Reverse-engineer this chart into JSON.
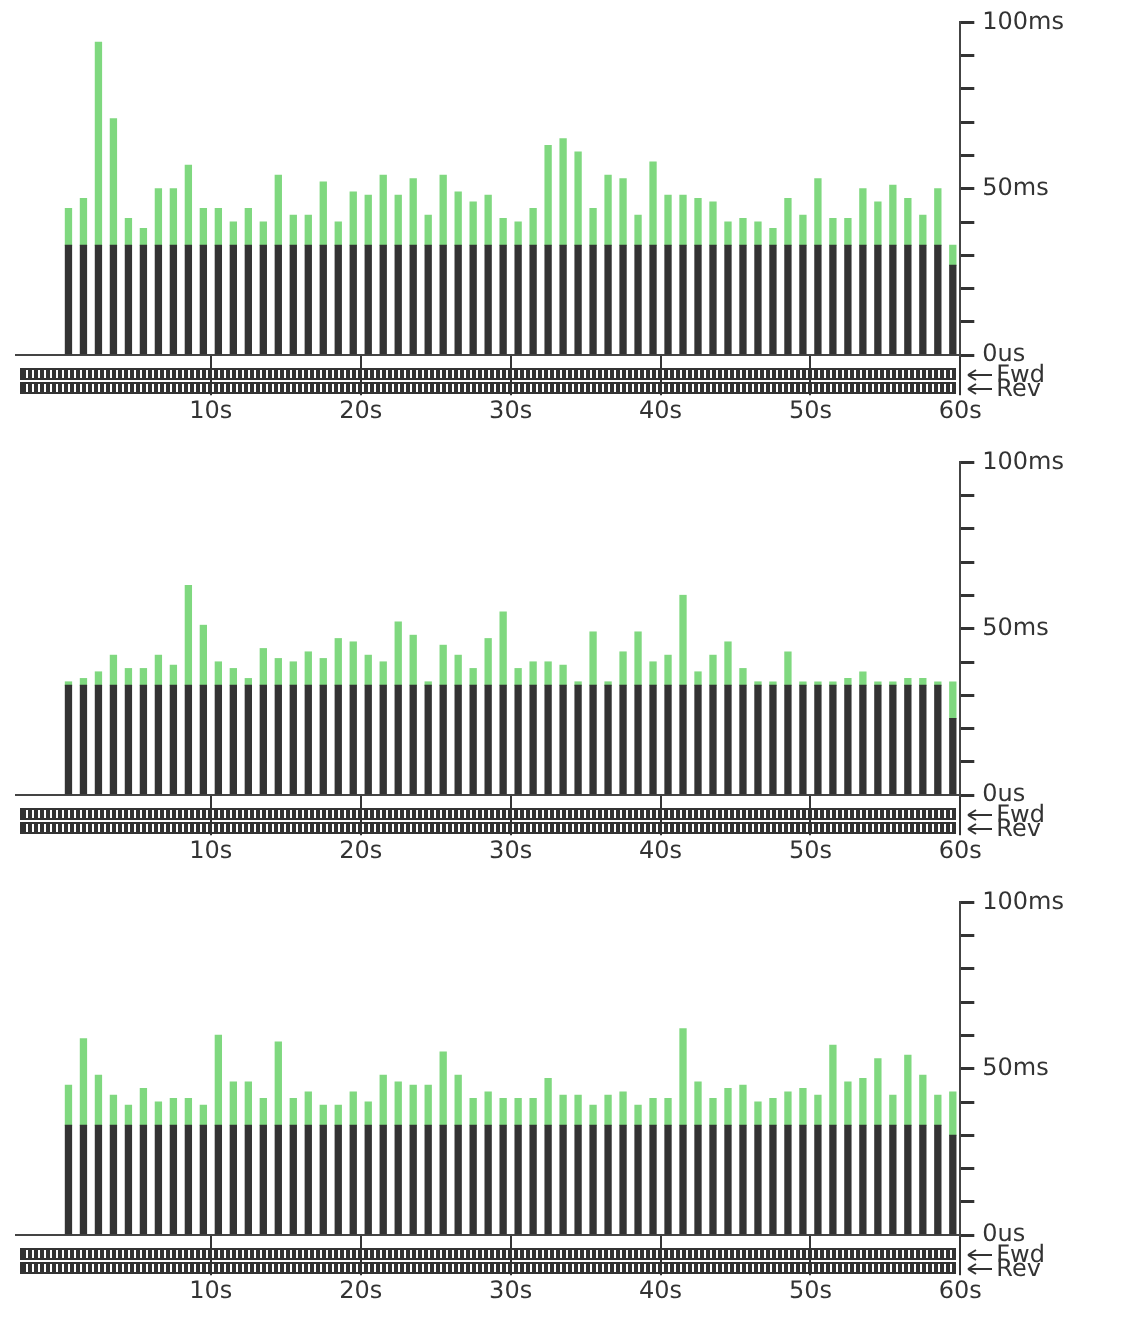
{
  "chart_data": [
    {
      "type": "bar",
      "stacked": true,
      "x": [
        0.5,
        1.5,
        2.5,
        3.5,
        4.5,
        5.5,
        6.5,
        7.5,
        8.5,
        9.5,
        10.5,
        11.5,
        12.5,
        13.5,
        14.5,
        15.5,
        16.5,
        17.5,
        18.5,
        19.5,
        20.5,
        21.5,
        22.5,
        23.5,
        24.5,
        25.5,
        26.5,
        27.5,
        28.5,
        29.5,
        30.5,
        31.5,
        32.5,
        33.5,
        34.5,
        35.5,
        36.5,
        37.5,
        38.5,
        39.5,
        40.5,
        41.5,
        42.5,
        43.5,
        44.5,
        45.5,
        46.5,
        47.5,
        48.5,
        49.5,
        50.5,
        51.5,
        52.5,
        53.5,
        54.5,
        55.5,
        56.5,
        57.5,
        58.5,
        59.5
      ],
      "series": [
        {
          "color": "#333333",
          "values": [
            33,
            33,
            33,
            33,
            33,
            33,
            33,
            33,
            33,
            33,
            33,
            33,
            33,
            33,
            33,
            33,
            33,
            33,
            33,
            33,
            33,
            33,
            33,
            33,
            33,
            33,
            33,
            33,
            33,
            33,
            33,
            33,
            33,
            33,
            33,
            33,
            33,
            33,
            33,
            33,
            33,
            33,
            33,
            33,
            33,
            33,
            33,
            33,
            33,
            33,
            33,
            33,
            33,
            33,
            33,
            33,
            33,
            33,
            33,
            27
          ]
        },
        {
          "color": "#7fd87f",
          "values": [
            11,
            14,
            61,
            38,
            8,
            5,
            17,
            17,
            24,
            11,
            11,
            7,
            11,
            7,
            21,
            9,
            9,
            19,
            7,
            16,
            15,
            21,
            15,
            20,
            9,
            21,
            16,
            13,
            15,
            8,
            7,
            11,
            30,
            32,
            28,
            11,
            21,
            20,
            9,
            25,
            15,
            15,
            14,
            13,
            7,
            8,
            7,
            5,
            14,
            9,
            20,
            8,
            8,
            17,
            13,
            18,
            14,
            9,
            17,
            6
          ]
        }
      ],
      "xlim": [
        -3,
        60
      ],
      "xticks": [
        {
          "value": 10,
          "label": "10s"
        },
        {
          "value": 20,
          "label": "20s"
        },
        {
          "value": 30,
          "label": "30s"
        },
        {
          "value": 40,
          "label": "40s"
        },
        {
          "value": 50,
          "label": "50s"
        },
        {
          "value": 60,
          "label": "60s"
        }
      ],
      "ylim": [
        0,
        100
      ],
      "yticks": [
        {
          "value": 0,
          "label": "0us"
        },
        {
          "value": 10,
          "label": null
        },
        {
          "value": 20,
          "label": null
        },
        {
          "value": 30,
          "label": null
        },
        {
          "value": 40,
          "label": null
        },
        {
          "value": 50,
          "label": "50ms"
        },
        {
          "value": 60,
          "label": null
        },
        {
          "value": 70,
          "label": null
        },
        {
          "value": 80,
          "label": null
        },
        {
          "value": 90,
          "label": null
        },
        {
          "value": 100,
          "label": "100ms"
        }
      ],
      "annotations": [
        "Fwd",
        "Rev"
      ]
    },
    {
      "type": "bar",
      "stacked": true,
      "x": [
        0.5,
        1.5,
        2.5,
        3.5,
        4.5,
        5.5,
        6.5,
        7.5,
        8.5,
        9.5,
        10.5,
        11.5,
        12.5,
        13.5,
        14.5,
        15.5,
        16.5,
        17.5,
        18.5,
        19.5,
        20.5,
        21.5,
        22.5,
        23.5,
        24.5,
        25.5,
        26.5,
        27.5,
        28.5,
        29.5,
        30.5,
        31.5,
        32.5,
        33.5,
        34.5,
        35.5,
        36.5,
        37.5,
        38.5,
        39.5,
        40.5,
        41.5,
        42.5,
        43.5,
        44.5,
        45.5,
        46.5,
        47.5,
        48.5,
        49.5,
        50.5,
        51.5,
        52.5,
        53.5,
        54.5,
        55.5,
        56.5,
        57.5,
        58.5,
        59.5
      ],
      "series": [
        {
          "color": "#333333",
          "values": [
            33,
            33,
            33,
            33,
            33,
            33,
            33,
            33,
            33,
            33,
            33,
            33,
            33,
            33,
            33,
            33,
            33,
            33,
            33,
            33,
            33,
            33,
            33,
            33,
            33,
            33,
            33,
            33,
            33,
            33,
            33,
            33,
            33,
            33,
            33,
            33,
            33,
            33,
            33,
            33,
            33,
            33,
            33,
            33,
            33,
            33,
            33,
            33,
            33,
            33,
            33,
            33,
            33,
            33,
            33,
            33,
            33,
            33,
            33,
            23
          ]
        },
        {
          "color": "#7fd87f",
          "values": [
            1,
            2,
            4,
            9,
            5,
            5,
            9,
            6,
            30,
            18,
            7,
            5,
            2,
            11,
            8,
            7,
            10,
            8,
            14,
            13,
            9,
            7,
            19,
            15,
            1,
            12,
            9,
            5,
            14,
            22,
            5,
            7,
            7,
            6,
            1,
            16,
            1,
            10,
            16,
            7,
            9,
            27,
            4,
            9,
            13,
            5,
            1,
            1,
            10,
            1,
            1,
            1,
            2,
            4,
            1,
            1,
            2,
            2,
            1,
            11
          ]
        }
      ],
      "xlim": [
        -3,
        60
      ],
      "xticks": [
        {
          "value": 10,
          "label": "10s"
        },
        {
          "value": 20,
          "label": "20s"
        },
        {
          "value": 30,
          "label": "30s"
        },
        {
          "value": 40,
          "label": "40s"
        },
        {
          "value": 50,
          "label": "50s"
        },
        {
          "value": 60,
          "label": "60s"
        }
      ],
      "ylim": [
        0,
        100
      ],
      "yticks": [
        {
          "value": 0,
          "label": "0us"
        },
        {
          "value": 10,
          "label": null
        },
        {
          "value": 20,
          "label": null
        },
        {
          "value": 30,
          "label": null
        },
        {
          "value": 40,
          "label": null
        },
        {
          "value": 50,
          "label": "50ms"
        },
        {
          "value": 60,
          "label": null
        },
        {
          "value": 70,
          "label": null
        },
        {
          "value": 80,
          "label": null
        },
        {
          "value": 90,
          "label": null
        },
        {
          "value": 100,
          "label": "100ms"
        }
      ],
      "annotations": [
        "Fwd",
        "Rev"
      ]
    },
    {
      "type": "bar",
      "stacked": true,
      "x": [
        0.5,
        1.5,
        2.5,
        3.5,
        4.5,
        5.5,
        6.5,
        7.5,
        8.5,
        9.5,
        10.5,
        11.5,
        12.5,
        13.5,
        14.5,
        15.5,
        16.5,
        17.5,
        18.5,
        19.5,
        20.5,
        21.5,
        22.5,
        23.5,
        24.5,
        25.5,
        26.5,
        27.5,
        28.5,
        29.5,
        30.5,
        31.5,
        32.5,
        33.5,
        34.5,
        35.5,
        36.5,
        37.5,
        38.5,
        39.5,
        40.5,
        41.5,
        42.5,
        43.5,
        44.5,
        45.5,
        46.5,
        47.5,
        48.5,
        49.5,
        50.5,
        51.5,
        52.5,
        53.5,
        54.5,
        55.5,
        56.5,
        57.5,
        58.5,
        59.5
      ],
      "series": [
        {
          "color": "#333333",
          "values": [
            33,
            33,
            33,
            33,
            33,
            33,
            33,
            33,
            33,
            33,
            33,
            33,
            33,
            33,
            33,
            33,
            33,
            33,
            33,
            33,
            33,
            33,
            33,
            33,
            33,
            33,
            33,
            33,
            33,
            33,
            33,
            33,
            33,
            33,
            33,
            33,
            33,
            33,
            33,
            33,
            33,
            33,
            33,
            33,
            33,
            33,
            33,
            33,
            33,
            33,
            33,
            33,
            33,
            33,
            33,
            33,
            33,
            33,
            33,
            30
          ]
        },
        {
          "color": "#7fd87f",
          "values": [
            12,
            26,
            15,
            9,
            6,
            11,
            7,
            8,
            8,
            6,
            27,
            13,
            13,
            8,
            25,
            8,
            10,
            6,
            6,
            10,
            7,
            15,
            13,
            12,
            12,
            22,
            15,
            8,
            10,
            8,
            8,
            8,
            14,
            9,
            9,
            6,
            9,
            10,
            6,
            8,
            8,
            29,
            13,
            8,
            11,
            12,
            7,
            8,
            10,
            11,
            9,
            24,
            13,
            14,
            20,
            9,
            21,
            15,
            9,
            13
          ]
        }
      ],
      "xlim": [
        -3,
        60
      ],
      "xticks": [
        {
          "value": 10,
          "label": "10s"
        },
        {
          "value": 20,
          "label": "20s"
        },
        {
          "value": 30,
          "label": "30s"
        },
        {
          "value": 40,
          "label": "40s"
        },
        {
          "value": 50,
          "label": "50s"
        },
        {
          "value": 60,
          "label": "60s"
        }
      ],
      "ylim": [
        0,
        100
      ],
      "yticks": [
        {
          "value": 0,
          "label": "0us"
        },
        {
          "value": 10,
          "label": null
        },
        {
          "value": 20,
          "label": null
        },
        {
          "value": 30,
          "label": null
        },
        {
          "value": 40,
          "label": null
        },
        {
          "value": 50,
          "label": "50ms"
        },
        {
          "value": 60,
          "label": null
        },
        {
          "value": 70,
          "label": null
        },
        {
          "value": 80,
          "label": null
        },
        {
          "value": 90,
          "label": null
        },
        {
          "value": 100,
          "label": "100ms"
        }
      ],
      "annotations": [
        "Fwd",
        "Rev"
      ]
    }
  ]
}
